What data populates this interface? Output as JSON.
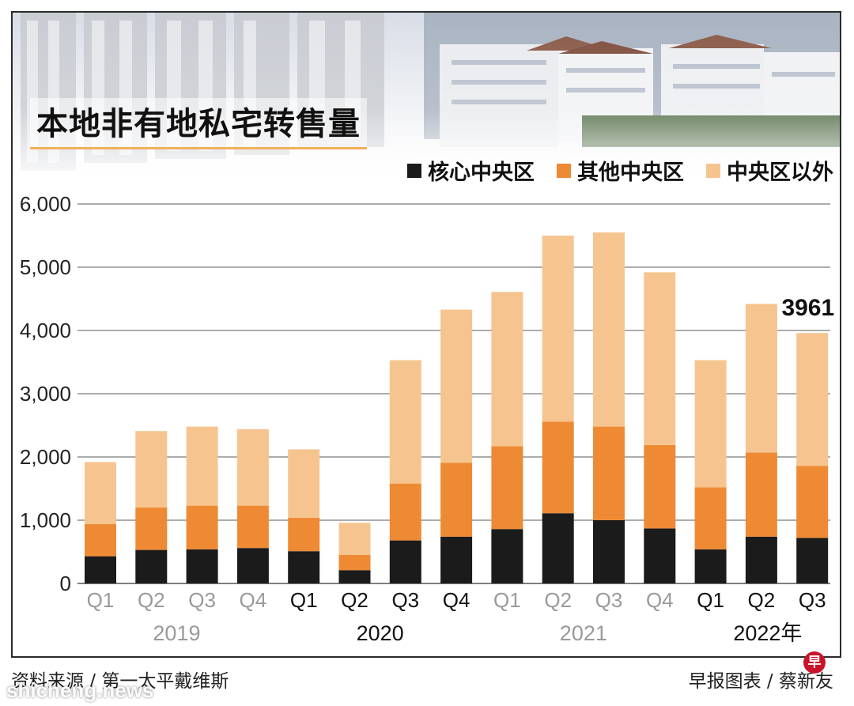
{
  "title": "本地非有地私宅转售量",
  "legend": [
    {
      "label": "核心中央区",
      "color": "#1b1b1b"
    },
    {
      "label": "其他中央区",
      "color": "#ee8a34"
    },
    {
      "label": "中央区以外",
      "color": "#f6c58f"
    }
  ],
  "footer": {
    "source": "资料来源 / 第一太平戴维斯",
    "credit": "早报图表 / 蔡新友",
    "logo_char": "早"
  },
  "watermark": "shicheng.news",
  "chart_data": {
    "type": "bar",
    "stacked": true,
    "categories": [
      "Q1",
      "Q2",
      "Q3",
      "Q4",
      "Q1",
      "Q2",
      "Q3",
      "Q4",
      "Q1",
      "Q2",
      "Q3",
      "Q4",
      "Q1",
      "Q2",
      "Q3"
    ],
    "years": [
      {
        "label": "2019",
        "highlight": false
      },
      {
        "label": "2020",
        "highlight": true
      },
      {
        "label": "2021",
        "highlight": false
      },
      {
        "label": "2022年",
        "highlight": true
      }
    ],
    "series": [
      {
        "name": "核心中央区",
        "values": [
          430,
          530,
          540,
          560,
          510,
          210,
          680,
          740,
          860,
          1110,
          1000,
          870,
          540,
          740,
          720
        ]
      },
      {
        "name": "其他中央区",
        "values": [
          510,
          670,
          690,
          670,
          530,
          240,
          900,
          1170,
          1310,
          1450,
          1480,
          1320,
          980,
          1330,
          1140
        ]
      },
      {
        "name": "中央区以外",
        "values": [
          980,
          1210,
          1250,
          1210,
          1080,
          510,
          1950,
          2420,
          2440,
          2940,
          3070,
          2730,
          2010,
          2350,
          2100
        ]
      }
    ],
    "annotation": {
      "label": "3961",
      "category_index": 14
    },
    "yticks": [
      0,
      1000,
      2000,
      3000,
      4000,
      5000,
      6000
    ],
    "ytick_labels": [
      "0",
      "1,000",
      "2,000",
      "3,000",
      "4,000",
      "5,000",
      "6,000"
    ],
    "ylim": [
      0,
      6000
    ],
    "grid": true,
    "legend_position": "top-right"
  }
}
